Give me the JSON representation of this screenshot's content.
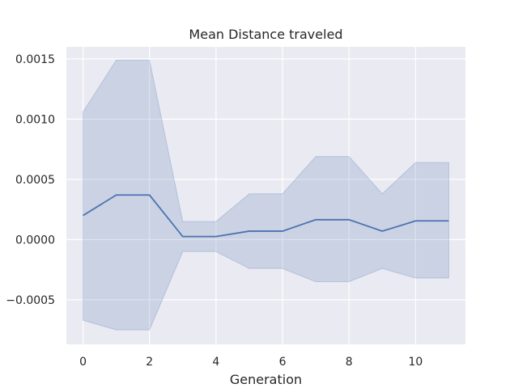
{
  "chart_data": {
    "type": "line",
    "title": "Mean Distance traveled",
    "xlabel": "Generation",
    "ylabel": "",
    "xlim": [
      -0.5,
      11.5
    ],
    "ylim": [
      -0.00087,
      0.0016
    ],
    "xticks": [
      0,
      2,
      4,
      6,
      8,
      10
    ],
    "xtick_labels": [
      "0",
      "2",
      "4",
      "6",
      "8",
      "10"
    ],
    "yticks": [
      -0.0005,
      0.0,
      0.0005,
      0.001,
      0.0015
    ],
    "ytick_labels": [
      "−0.0005",
      "0.0000",
      "0.0005",
      "0.0010",
      "0.0015"
    ],
    "grid": true,
    "background_color": "#eaeaf2",
    "series": [
      {
        "color": "#4c72b0",
        "x": [
          0,
          1,
          2,
          3,
          4,
          5,
          6,
          7,
          8,
          9,
          10,
          11
        ],
        "y": [
          0.0002,
          0.00037,
          0.00037,
          2.5e-05,
          2.5e-05,
          7e-05,
          7e-05,
          0.000165,
          0.000165,
          7e-05,
          0.000155,
          0.000155
        ],
        "band_upper": [
          0.00106,
          0.00149,
          0.00149,
          0.00015,
          0.00015,
          0.00038,
          0.00038,
          0.00069,
          0.00069,
          0.00038,
          0.00064,
          0.00064
        ],
        "band_lower": [
          -0.00067,
          -0.00075,
          -0.00075,
          -0.0001,
          -0.0001,
          -0.00024,
          -0.00024,
          -0.00035,
          -0.00035,
          -0.00024,
          -0.00032,
          -0.00032
        ]
      }
    ]
  }
}
